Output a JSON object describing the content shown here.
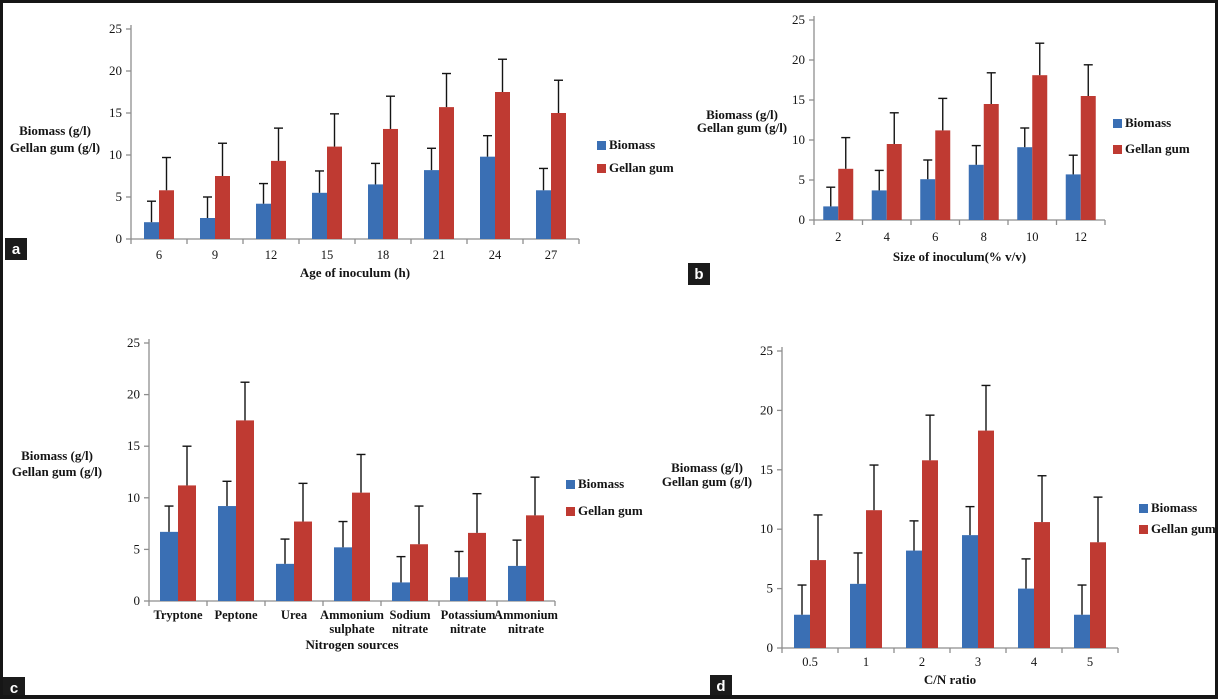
{
  "figure": {
    "background": "#ffffff",
    "border_color": "#161616",
    "axis_color": "#8E8E8E",
    "error_bar_color": "#141414",
    "panels": [
      {
        "label": "a",
        "chart_data": {
          "type": "bar",
          "title": "",
          "xlabel": "Age of inoculum (h)",
          "ylabel_lines": [
            "Biomass (g/l)",
            "Gellan gum (g/l)"
          ],
          "ylim": [
            0,
            25
          ],
          "ytick_step": 5,
          "grid": false,
          "legend_position": "right",
          "categories": [
            [
              "6"
            ],
            [
              "9"
            ],
            [
              "12"
            ],
            [
              "15"
            ],
            [
              "18"
            ],
            [
              "21"
            ],
            [
              "24"
            ],
            [
              "27"
            ]
          ],
          "series": [
            {
              "name": "Biomass",
              "color": "#3A6FB4",
              "values": [
                2.0,
                2.5,
                4.2,
                5.5,
                6.5,
                8.2,
                9.8,
                5.8
              ],
              "errors": [
                2.5,
                2.5,
                2.4,
                2.6,
                2.5,
                2.6,
                2.5,
                2.6
              ]
            },
            {
              "name": "Gellan gum",
              "color": "#BF3A32",
              "values": [
                5.8,
                7.5,
                9.3,
                11.0,
                13.1,
                15.7,
                17.5,
                15.0
              ],
              "errors": [
                3.9,
                3.9,
                3.9,
                3.9,
                3.9,
                4.0,
                3.9,
                3.9
              ]
            }
          ]
        }
      },
      {
        "label": "b",
        "chart_data": {
          "type": "bar",
          "title": "",
          "xlabel": "Size of inoculum(% v/v)",
          "ylabel_lines": [
            "Biomass (g/l)",
            "Gellan gum (g/l)"
          ],
          "ylim": [
            0,
            25
          ],
          "ytick_step": 5,
          "grid": false,
          "legend_position": "right",
          "categories": [
            [
              "2"
            ],
            [
              "4"
            ],
            [
              "6"
            ],
            [
              "8"
            ],
            [
              "10"
            ],
            [
              "12"
            ]
          ],
          "series": [
            {
              "name": "Biomass",
              "color": "#3A6FB4",
              "values": [
                1.7,
                3.7,
                5.1,
                6.9,
                9.1,
                5.7
              ],
              "errors": [
                2.4,
                2.5,
                2.4,
                2.4,
                2.4,
                2.4
              ]
            },
            {
              "name": "Gellan gum",
              "color": "#BF3A32",
              "values": [
                6.4,
                9.5,
                11.2,
                14.5,
                18.1,
                15.5
              ],
              "errors": [
                3.9,
                3.9,
                4.0,
                3.9,
                4.0,
                3.9
              ]
            }
          ]
        }
      },
      {
        "label": "c",
        "chart_data": {
          "type": "bar",
          "title": "",
          "xlabel": "Nitrogen sources",
          "ylabel_lines": [
            "Biomass (g/l)",
            "Gellan gum (g/l)"
          ],
          "ylim": [
            0,
            25
          ],
          "ytick_step": 5,
          "grid": false,
          "legend_position": "right",
          "categories": [
            [
              "Tryptone"
            ],
            [
              "Peptone"
            ],
            [
              "Urea"
            ],
            [
              "Ammonium",
              "sulphate"
            ],
            [
              "Sodium",
              "nitrate"
            ],
            [
              "Potassium",
              "nitrate"
            ],
            [
              "Ammonium",
              "nitrate"
            ]
          ],
          "series": [
            {
              "name": "Biomass",
              "color": "#3A6FB4",
              "values": [
                6.7,
                9.2,
                3.6,
                5.2,
                1.8,
                2.3,
                3.4
              ],
              "errors": [
                2.5,
                2.4,
                2.4,
                2.5,
                2.5,
                2.5,
                2.5
              ]
            },
            {
              "name": "Gellan gum",
              "color": "#BF3A32",
              "values": [
                11.2,
                17.5,
                7.7,
                10.5,
                5.5,
                6.6,
                8.3
              ],
              "errors": [
                3.8,
                3.7,
                3.7,
                3.7,
                3.7,
                3.8,
                3.7
              ]
            }
          ]
        }
      },
      {
        "label": "d",
        "chart_data": {
          "type": "bar",
          "title": "",
          "xlabel": "C/N ratio",
          "ylabel_lines": [
            "Biomass (g/l)",
            "Gellan gum (g/l)"
          ],
          "ylim": [
            0,
            25
          ],
          "ytick_step": 5,
          "grid": false,
          "legend_position": "right",
          "categories": [
            [
              "0.5"
            ],
            [
              "1"
            ],
            [
              "2"
            ],
            [
              "3"
            ],
            [
              "4"
            ],
            [
              "5"
            ]
          ],
          "series": [
            {
              "name": "Biomass",
              "color": "#3A6FB4",
              "values": [
                2.8,
                5.4,
                8.2,
                9.5,
                5.0,
                2.8
              ],
              "errors": [
                2.5,
                2.6,
                2.5,
                2.4,
                2.5,
                2.5
              ]
            },
            {
              "name": "Gellan gum",
              "color": "#BF3A32",
              "values": [
                7.4,
                11.6,
                15.8,
                18.3,
                10.6,
                8.9
              ],
              "errors": [
                3.8,
                3.8,
                3.8,
                3.8,
                3.9,
                3.8
              ]
            }
          ]
        }
      }
    ]
  }
}
